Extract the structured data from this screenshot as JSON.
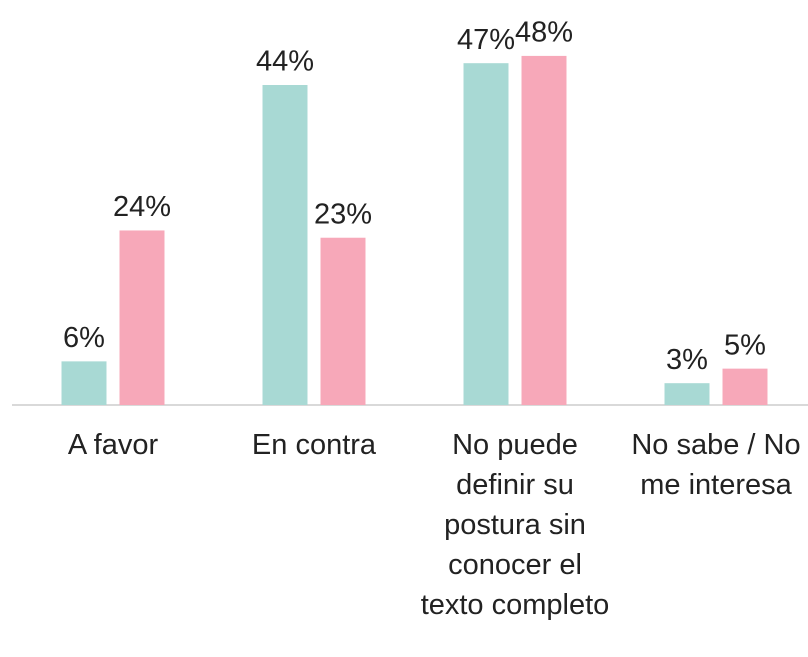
{
  "chart_data": {
    "type": "bar",
    "categories": [
      "A favor",
      "En contra",
      "No puede definir su postura sin conocer el texto completo",
      "No sabe / No me interesa"
    ],
    "series": [
      {
        "color": "#a8d9d4",
        "values": [
          6,
          44,
          47,
          3
        ],
        "value_labels": [
          "6%",
          "44%",
          "47%",
          "3%"
        ]
      },
      {
        "color": "#f7a8b9",
        "values": [
          24,
          23,
          48,
          5
        ],
        "value_labels": [
          "24%",
          "23%",
          "48%",
          "5%"
        ]
      }
    ],
    "ylim": [
      0,
      55
    ]
  }
}
